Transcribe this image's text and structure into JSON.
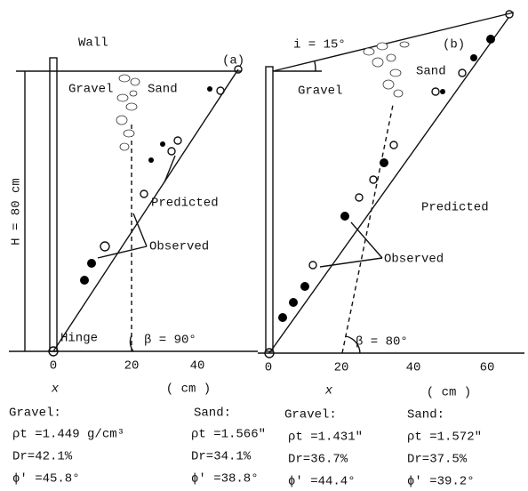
{
  "panels": [
    {
      "label": "(a)",
      "wall": "Wall",
      "hinge": "Hinge",
      "height": "H = 80 cm",
      "gravel": "Gravel",
      "sand": "Sand",
      "predicted": "Predicted",
      "observed": "Observed",
      "angle": "β = 90°",
      "xticks": [
        "0",
        "20",
        "40"
      ],
      "x_label": "x",
      "unit": "( cm )"
    },
    {
      "label": "(b)",
      "slope": "i = 15°",
      "gravel": "Gravel",
      "sand": "Sand",
      "predicted": "Predicted",
      "observed": "Observed",
      "angle": "β = 80°",
      "xticks": [
        "0",
        "20",
        "40",
        "60"
      ],
      "x_label": "x",
      "unit": "( cm )"
    }
  ],
  "properties": [
    {
      "title": "Gravel:",
      "lines": [
        "ρt =1.449 g/cm³",
        "Dr=42.1%",
        "ϕ′ =45.8°"
      ]
    },
    {
      "title": "Sand:",
      "lines": [
        "ρt =1.566\"",
        "Dr=34.1%",
        "ϕ′ =38.8°"
      ]
    },
    {
      "title": "Gravel:",
      "lines": [
        "ρt =1.431\"",
        "Dr=36.7%",
        "ϕ′ =44.4°"
      ]
    },
    {
      "title": "Sand:",
      "lines": [
        "ρt =1.572\"",
        "Dr=37.5%",
        "ϕ′ =39.2°"
      ]
    }
  ]
}
